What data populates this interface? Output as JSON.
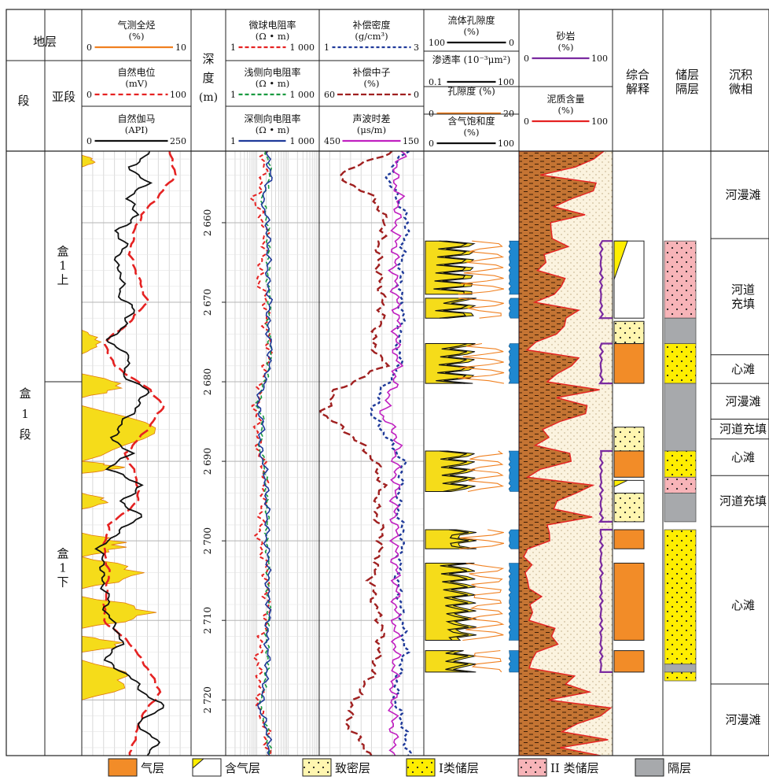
{
  "header": {
    "formation": "地层",
    "segment": "段",
    "subsegment": "亚段",
    "depth": [
      "深",
      "度",
      "(m)"
    ],
    "comprehensive": [
      "综合",
      "解释"
    ],
    "reservoir_barrier": [
      "储层",
      "隔层"
    ],
    "sedimentary": [
      "沉积",
      "微相"
    ]
  },
  "tracks": {
    "t1": [
      {
        "name": "气测全烃",
        "unit": "(%)",
        "min": "0",
        "max": "10",
        "color": "#f08020",
        "dash": ""
      },
      {
        "name": "自然电位",
        "unit": "(mV)",
        "min": "0",
        "max": "100",
        "color": "#e52222",
        "dash": "6,4"
      },
      {
        "name": "自然伽马",
        "unit": "(API)",
        "min": "0",
        "max": "250",
        "color": "#111111",
        "dash": ""
      }
    ],
    "t2": [
      {
        "name": "微球电阻率",
        "unit": "(Ω • m)",
        "min": "1",
        "max": "1 000",
        "color": "#e52222",
        "dash": "5,3"
      },
      {
        "name": "浅侧向电阻率",
        "unit": "(Ω • m)",
        "min": "1",
        "max": "1 000",
        "color": "#1a9a40",
        "dash": "5,3"
      },
      {
        "name": "深侧向电阻率",
        "unit": "(Ω • m)",
        "min": "1",
        "max": "1 000",
        "color": "#1f3a9a",
        "dash": ""
      }
    ],
    "t3": [
      {
        "name": "补偿密度",
        "unit": "(g/cm³)",
        "min": "1",
        "max": "3",
        "color": "#1f3a9a",
        "dash": "4,3"
      },
      {
        "name": "补偿中子",
        "unit": "(%)",
        "min": "60",
        "max": "0",
        "color": "#a02020",
        "dash": "7,3"
      },
      {
        "name": "声波时差",
        "unit": "(μs/m)",
        "min": "450",
        "max": "150",
        "color": "#c020c0",
        "dash": ""
      }
    ],
    "t4": [
      {
        "name": "流体孔隙度",
        "unit": "(%)",
        "min": "100",
        "max": "0",
        "color": "#111111",
        "dash": ""
      },
      {
        "name": "渗透率 (10⁻³μm²)",
        "unit": "",
        "min": "0.1",
        "max": "100",
        "color": "#111111",
        "dash": ""
      },
      {
        "name": "孔隙度 (%)",
        "unit": "",
        "min": "0",
        "max": "20",
        "color": "#f08020",
        "dash": ""
      },
      {
        "name": "含气饱和度",
        "unit": "(%)",
        "min": "0",
        "max": "100",
        "color": "#111111",
        "dash": ""
      }
    ],
    "t5": [
      {
        "name": "砂岩",
        "unit": "(%)",
        "min": "0",
        "max": "100",
        "color": "#7a2aa0",
        "dash": ""
      },
      {
        "name": "泥质含量",
        "unit": "(%)",
        "min": "0",
        "max": "100",
        "color": "#e52222",
        "dash": ""
      }
    ]
  },
  "stratigraphy": {
    "segment_label": [
      "盒",
      "1",
      "段"
    ],
    "subsegments": [
      {
        "label": [
          "盒",
          "1",
          "上"
        ],
        "top_m": 2651,
        "bottom_m": 2680
      },
      {
        "label": [
          "盒",
          "1",
          "下"
        ],
        "top_m": 2680,
        "bottom_m": 2727
      }
    ]
  },
  "depth_axis": {
    "top_m": 2651,
    "bottom_m": 2727,
    "ticks": [
      2660,
      2670,
      2680,
      2690,
      2700,
      2710,
      2720
    ]
  },
  "interpretation": [
    {
      "type": "gas_bearing",
      "top": 2662.3,
      "bottom": 2672.0
    },
    {
      "type": "tight",
      "top": 2672.4,
      "bottom": 2675.2
    },
    {
      "type": "gas",
      "top": 2675.2,
      "bottom": 2680.2
    },
    {
      "type": "tight",
      "top": 2685.7,
      "bottom": 2688.7
    },
    {
      "type": "gas",
      "top": 2688.7,
      "bottom": 2692.0
    },
    {
      "type": "gas_bearing",
      "top": 2692.4,
      "bottom": 2694.0
    },
    {
      "type": "tight",
      "top": 2694.0,
      "bottom": 2697.6
    },
    {
      "type": "gas",
      "top": 2698.6,
      "bottom": 2701.0
    },
    {
      "type": "gas",
      "top": 2702.8,
      "bottom": 2712.5
    },
    {
      "type": "gas",
      "top": 2713.8,
      "bottom": 2716.5
    }
  ],
  "reservoir": [
    {
      "type": "class2",
      "top": 2662.3,
      "bottom": 2672.0
    },
    {
      "type": "barrier",
      "top": 2672.0,
      "bottom": 2675.2
    },
    {
      "type": "class1",
      "top": 2675.2,
      "bottom": 2680.2
    },
    {
      "type": "barrier",
      "top": 2680.2,
      "bottom": 2688.7
    },
    {
      "type": "class1",
      "top": 2688.7,
      "bottom": 2692.0
    },
    {
      "type": "class2",
      "top": 2692.0,
      "bottom": 2694.0
    },
    {
      "type": "barrier",
      "top": 2694.0,
      "bottom": 2697.6
    },
    {
      "type": "class1",
      "top": 2698.6,
      "bottom": 2715.5
    },
    {
      "type": "barrier",
      "top": 2715.5,
      "bottom": 2716.5
    },
    {
      "type": "class1",
      "top": 2716.5,
      "bottom": 2717.6
    }
  ],
  "microfacies": [
    {
      "label": "河漫滩",
      "top": 2651,
      "bottom": 2662.0
    },
    {
      "label": "河道",
      "label2": "充填",
      "top": 2662.0,
      "bottom": 2676.6
    },
    {
      "label": "心滩",
      "top": 2676.6,
      "bottom": 2680.2
    },
    {
      "label": "河漫滩",
      "top": 2680.2,
      "bottom": 2684.7
    },
    {
      "label": "河道充填",
      "top": 2684.7,
      "bottom": 2687.2
    },
    {
      "label": "心滩",
      "top": 2687.2,
      "bottom": 2691.8
    },
    {
      "label": "河道充填",
      "top": 2691.8,
      "bottom": 2698.2
    },
    {
      "label": "心滩",
      "top": 2698.2,
      "bottom": 2718.0
    },
    {
      "label": "河漫滩",
      "top": 2718.0,
      "bottom": 2727
    }
  ],
  "legend": [
    {
      "key": "gas",
      "label": "气层"
    },
    {
      "key": "gas_bearing",
      "label": "含气层"
    },
    {
      "key": "tight",
      "label": "致密层"
    },
    {
      "key": "class1",
      "label": "I类储层"
    },
    {
      "key": "class2",
      "label": "II 类储层"
    },
    {
      "key": "barrier",
      "label": "隔层"
    }
  ],
  "colors": {
    "gas": "#f28c28",
    "gas_bearing": "#ffee00",
    "tight": "#fff6b0",
    "class1": "#ffee00",
    "class2": "#f7b4b8",
    "barrier": "#a7a9ac",
    "mud": "#c47433",
    "sand": "#fbf3df",
    "gas_log_fill": "#f5dc1a",
    "blue_fill": "#1f88d0"
  },
  "chart_data": {
    "type": "line",
    "depth_units": "m",
    "series": [
      {
        "name": "自然伽马",
        "units": "API",
        "range": [
          0,
          250
        ],
        "values": [
          [
            2651,
            160
          ],
          [
            2653,
            110
          ],
          [
            2655,
            150
          ],
          [
            2657,
            105
          ],
          [
            2659,
            130
          ],
          [
            2661,
            80
          ],
          [
            2663,
            100
          ],
          [
            2665,
            75
          ],
          [
            2667,
            95
          ],
          [
            2669,
            85
          ],
          [
            2671,
            120
          ],
          [
            2673,
            95
          ],
          [
            2675,
            60
          ],
          [
            2677,
            115
          ],
          [
            2679,
            90
          ],
          [
            2681,
            150
          ],
          [
            2683,
            130
          ],
          [
            2685,
            95
          ],
          [
            2687,
            70
          ],
          [
            2689,
            110
          ],
          [
            2691,
            60
          ],
          [
            2693,
            140
          ],
          [
            2695,
            90
          ],
          [
            2697,
            135
          ],
          [
            2699,
            80
          ],
          [
            2701,
            40
          ],
          [
            2703,
            50
          ],
          [
            2705,
            45
          ],
          [
            2707,
            60
          ],
          [
            2709,
            55
          ],
          [
            2711,
            80
          ],
          [
            2713,
            90
          ],
          [
            2715,
            50
          ],
          [
            2717,
            110
          ],
          [
            2719,
            140
          ],
          [
            2721,
            190
          ],
          [
            2723,
            120
          ],
          [
            2725,
            175
          ],
          [
            2727,
            150
          ]
        ]
      },
      {
        "name": "自然电位",
        "units": "mV",
        "range": [
          0,
          100
        ],
        "values": [
          [
            2651,
            80
          ],
          [
            2654,
            86
          ],
          [
            2657,
            68
          ],
          [
            2659,
            55
          ],
          [
            2661,
            48
          ],
          [
            2664,
            44
          ],
          [
            2667,
            52
          ],
          [
            2670,
            60
          ],
          [
            2673,
            40
          ],
          [
            2675,
            20
          ],
          [
            2678,
            30
          ],
          [
            2681,
            62
          ],
          [
            2683,
            75
          ],
          [
            2686,
            60
          ],
          [
            2689,
            40
          ],
          [
            2692,
            50
          ],
          [
            2695,
            52
          ],
          [
            2698,
            25
          ],
          [
            2701,
            20
          ],
          [
            2704,
            25
          ],
          [
            2707,
            22
          ],
          [
            2710,
            20
          ],
          [
            2713,
            45
          ],
          [
            2716,
            60
          ],
          [
            2719,
            72
          ],
          [
            2722,
            55
          ],
          [
            2725,
            48
          ],
          [
            2727,
            44
          ]
        ]
      },
      {
        "name": "深侧向电阻率",
        "units": "Ω·m",
        "range": [
          1,
          1000
        ],
        "log": true,
        "values": [
          [
            2651,
            20
          ],
          [
            2654,
            28
          ],
          [
            2657,
            14
          ],
          [
            2659,
            20
          ],
          [
            2661,
            22
          ],
          [
            2664,
            24
          ],
          [
            2667,
            22
          ],
          [
            2670,
            26
          ],
          [
            2673,
            22
          ],
          [
            2676,
            28
          ],
          [
            2679,
            22
          ],
          [
            2681,
            14
          ],
          [
            2683,
            10
          ],
          [
            2685,
            16
          ],
          [
            2688,
            12
          ],
          [
            2691,
            18
          ],
          [
            2694,
            20
          ],
          [
            2697,
            22
          ],
          [
            2700,
            20
          ],
          [
            2703,
            24
          ],
          [
            2706,
            22
          ],
          [
            2709,
            25
          ],
          [
            2712,
            20
          ],
          [
            2715,
            23
          ],
          [
            2718,
            18
          ],
          [
            2721,
            12
          ],
          [
            2724,
            22
          ],
          [
            2727,
            26
          ]
        ]
      },
      {
        "name": "补偿密度",
        "units": "g/cm³",
        "range": [
          1,
          3
        ],
        "values": [
          [
            2651,
            2.65
          ],
          [
            2654,
            2.3
          ],
          [
            2657,
            2.5
          ],
          [
            2660,
            2.7
          ],
          [
            2663,
            2.6
          ],
          [
            2666,
            2.55
          ],
          [
            2669,
            2.55
          ],
          [
            2672,
            2.6
          ],
          [
            2675,
            2.5
          ],
          [
            2678,
            2.55
          ],
          [
            2681,
            2.2
          ],
          [
            2684,
            2.0
          ],
          [
            2687,
            2.3
          ],
          [
            2690,
            2.6
          ],
          [
            2693,
            2.55
          ],
          [
            2696,
            2.5
          ],
          [
            2699,
            2.6
          ],
          [
            2702,
            2.55
          ],
          [
            2705,
            2.5
          ],
          [
            2708,
            2.55
          ],
          [
            2711,
            2.6
          ],
          [
            2714,
            2.65
          ],
          [
            2717,
            2.5
          ],
          [
            2720,
            2.45
          ],
          [
            2723,
            2.6
          ],
          [
            2727,
            2.7
          ]
        ]
      },
      {
        "name": "补偿中子",
        "units": "%",
        "range": [
          60,
          0
        ],
        "values": [
          [
            2651,
            18
          ],
          [
            2654,
            50
          ],
          [
            2657,
            28
          ],
          [
            2660,
            22
          ],
          [
            2663,
            26
          ],
          [
            2666,
            26
          ],
          [
            2669,
            24
          ],
          [
            2672,
            24
          ],
          [
            2675,
            30
          ],
          [
            2678,
            22
          ],
          [
            2681,
            50
          ],
          [
            2684,
            58
          ],
          [
            2687,
            40
          ],
          [
            2690,
            28
          ],
          [
            2693,
            24
          ],
          [
            2696,
            28
          ],
          [
            2699,
            24
          ],
          [
            2702,
            26
          ],
          [
            2705,
            30
          ],
          [
            2708,
            28
          ],
          [
            2711,
            24
          ],
          [
            2714,
            26
          ],
          [
            2717,
            30
          ],
          [
            2720,
            40
          ],
          [
            2723,
            44
          ],
          [
            2727,
            30
          ]
        ]
      },
      {
        "name": "声波时差",
        "units": "μs/m",
        "range": [
          450,
          150
        ],
        "values": [
          [
            2651,
            210
          ],
          [
            2654,
            235
          ],
          [
            2657,
            220
          ],
          [
            2660,
            230
          ],
          [
            2663,
            230
          ],
          [
            2666,
            235
          ],
          [
            2669,
            230
          ],
          [
            2672,
            225
          ],
          [
            2675,
            230
          ],
          [
            2678,
            225
          ],
          [
            2681,
            240
          ],
          [
            2684,
            270
          ],
          [
            2687,
            225
          ],
          [
            2690,
            232
          ],
          [
            2693,
            230
          ],
          [
            2696,
            235
          ],
          [
            2699,
            230
          ],
          [
            2702,
            232
          ],
          [
            2705,
            228
          ],
          [
            2708,
            230
          ],
          [
            2711,
            232
          ],
          [
            2714,
            230
          ],
          [
            2717,
            235
          ],
          [
            2720,
            240
          ],
          [
            2723,
            238
          ],
          [
            2727,
            232
          ]
        ]
      }
    ]
  }
}
